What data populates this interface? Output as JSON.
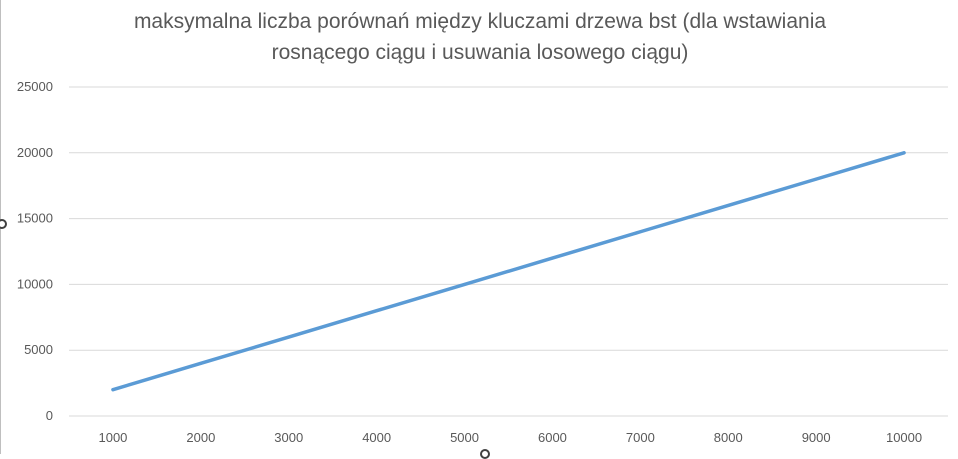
{
  "chart_data": {
    "type": "line",
    "title": "maksymalna liczba porównań między kluczami drzewa bst (dla wstawiania\nrosnącego ciągu i usuwania losowego ciągu)",
    "xlabel": "",
    "ylabel": "",
    "categories": [
      "1000",
      "2000",
      "3000",
      "4000",
      "5000",
      "6000",
      "7000",
      "8000",
      "9000",
      "10000"
    ],
    "series": [
      {
        "values": [
          2000,
          4000,
          6000,
          8000,
          10000,
          12000,
          14000,
          16000,
          18000,
          20000
        ],
        "color": "#5b9bd5"
      }
    ],
    "yticks": [
      "0",
      "5000",
      "10000",
      "15000",
      "20000",
      "25000"
    ],
    "ylim": [
      0,
      25000
    ],
    "grid": true,
    "legend": "none",
    "gridline_color": "#d9d9d9"
  }
}
